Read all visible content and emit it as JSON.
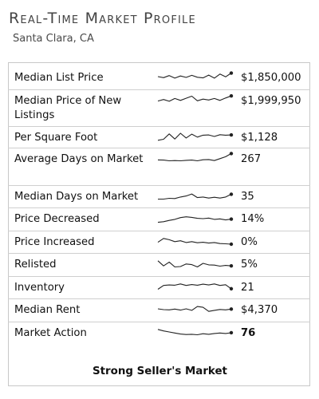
{
  "header": {
    "title": "Real-Time Market Profile",
    "location": "Santa Clara, CA"
  },
  "rows": [
    {
      "label": "Median List Price",
      "value": "$1,850,000",
      "spark": [
        0.5,
        0.58,
        0.42,
        0.62,
        0.45,
        0.56,
        0.4,
        0.55,
        0.6,
        0.38,
        0.62,
        0.3,
        0.52,
        0.22
      ],
      "spark_icon": "sparkline-icon"
    },
    {
      "label": "Median Price of New Listings",
      "value": "$1,999,950",
      "spark": [
        0.6,
        0.48,
        0.62,
        0.4,
        0.55,
        0.38,
        0.22,
        0.58,
        0.45,
        0.52,
        0.4,
        0.55,
        0.36,
        0.2
      ],
      "spark_icon": "sparkline-icon"
    },
    {
      "label": "Per Square Foot",
      "value": "$1,128",
      "spark": [
        0.8,
        0.72,
        0.3,
        0.7,
        0.25,
        0.62,
        0.32,
        0.55,
        0.4,
        0.38,
        0.5,
        0.36,
        0.4,
        0.38
      ],
      "spark_icon": "sparkline-icon"
    },
    {
      "label": "Average Days on Market",
      "value": "267",
      "spark": [
        0.65,
        0.66,
        0.72,
        0.7,
        0.72,
        0.68,
        0.66,
        0.72,
        0.64,
        0.62,
        0.7,
        0.55,
        0.4,
        0.15
      ],
      "spark_icon": "sparkline-icon"
    },
    {
      "label": "Median Days on Market",
      "value": "35",
      "spark": [
        0.78,
        0.78,
        0.72,
        0.74,
        0.62,
        0.54,
        0.38,
        0.66,
        0.62,
        0.7,
        0.64,
        0.7,
        0.62,
        0.4
      ],
      "spark_icon": "sparkline-icon"
    },
    {
      "label": "Price Decreased",
      "value": "14%",
      "spark": [
        0.85,
        0.8,
        0.7,
        0.62,
        0.48,
        0.42,
        0.46,
        0.54,
        0.56,
        0.52,
        0.62,
        0.58,
        0.66,
        0.6
      ],
      "spark_icon": "sparkline-icon"
    },
    {
      "label": "Price Increased",
      "value": "0%",
      "spark": [
        0.6,
        0.3,
        0.4,
        0.55,
        0.48,
        0.62,
        0.55,
        0.64,
        0.6,
        0.66,
        0.62,
        0.7,
        0.72,
        0.75
      ],
      "spark_icon": "sparkline-icon"
    },
    {
      "label": "Relisted",
      "value": "5%",
      "spark": [
        0.3,
        0.7,
        0.4,
        0.78,
        0.75,
        0.55,
        0.6,
        0.78,
        0.5,
        0.62,
        0.64,
        0.72,
        0.66,
        0.7
      ],
      "spark_icon": "sparkline-icon"
    },
    {
      "label": "Inventory",
      "value": "21",
      "spark": [
        0.72,
        0.42,
        0.38,
        0.4,
        0.3,
        0.42,
        0.35,
        0.4,
        0.32,
        0.38,
        0.3,
        0.42,
        0.36,
        0.68
      ],
      "spark_icon": "sparkline-icon"
    },
    {
      "label": "Median Rent",
      "value": "$4,370",
      "spark": [
        0.5,
        0.56,
        0.58,
        0.52,
        0.6,
        0.5,
        0.62,
        0.32,
        0.38,
        0.7,
        0.62,
        0.55,
        0.58,
        0.52
      ],
      "spark_icon": "sparkline-icon"
    },
    {
      "label": "Market Action",
      "value": "76",
      "spark": [
        0.3,
        0.42,
        0.5,
        0.58,
        0.66,
        0.7,
        0.68,
        0.72,
        0.64,
        0.68,
        0.62,
        0.58,
        0.62,
        0.56
      ],
      "spark_icon": "sparkline-icon",
      "bold": true
    }
  ],
  "footer": {
    "verdict": "Strong Seller's Market"
  },
  "colors": {
    "sparkline": "#222222",
    "divider": "#cfcfcf",
    "border": "#c8c8c8"
  }
}
